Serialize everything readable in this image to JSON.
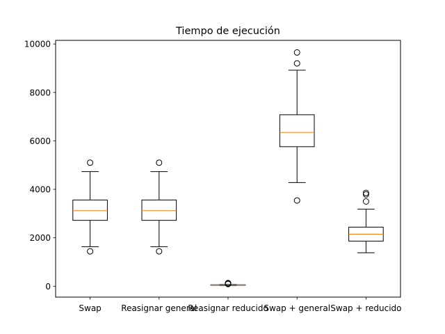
{
  "chart_data": {
    "type": "boxplot",
    "title": "Tiempo de ejecución",
    "xlabel": "",
    "ylabel": "",
    "ylim": [
      -450,
      10150
    ],
    "yticks": [
      0,
      2000,
      4000,
      6000,
      8000,
      10000
    ],
    "ytick_labels": [
      "0",
      "2000",
      "4000",
      "6000",
      "8000",
      "10000"
    ],
    "grid": false,
    "categories": [
      "Swap",
      "Reasignar general",
      "Reasignar reducido",
      "Swap + general",
      "Swap + reducido"
    ],
    "boxes": [
      {
        "category": "Swap",
        "whisker_low": 1630,
        "q1": 2720,
        "median": 3120,
        "q3": 3560,
        "whisker_high": 4730,
        "outliers": [
          1440,
          5100
        ]
      },
      {
        "category": "Reasignar general",
        "whisker_low": 1630,
        "q1": 2720,
        "median": 3120,
        "q3": 3560,
        "whisker_high": 4730,
        "outliers": [
          1440,
          5100
        ]
      },
      {
        "category": "Reasignar reducido",
        "whisker_low": 30,
        "q1": 40,
        "median": 50,
        "q3": 60,
        "whisker_high": 70,
        "outliers": [
          90,
          110,
          120,
          130
        ]
      },
      {
        "category": "Swap + general",
        "whisker_low": 4280,
        "q1": 5760,
        "median": 6350,
        "q3": 7080,
        "whisker_high": 8920,
        "outliers": [
          3540,
          9200,
          9650
        ]
      },
      {
        "category": "Swap + reducido",
        "whisker_low": 1380,
        "q1": 1860,
        "median": 2150,
        "q3": 2440,
        "whisker_high": 3180,
        "outliers": [
          3500,
          3790,
          3850
        ]
      }
    ],
    "colors": {
      "box": "#000000",
      "median": "#ff7f0e",
      "outlier": "#000000"
    }
  }
}
